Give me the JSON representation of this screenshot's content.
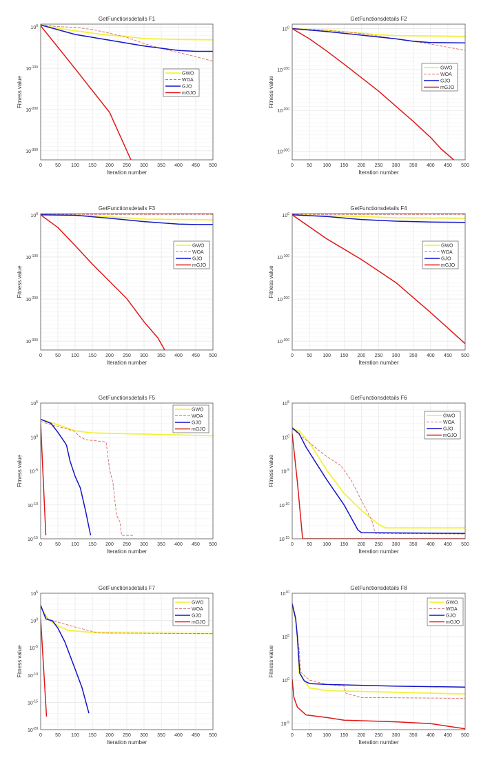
{
  "colors": {
    "GWO": "#f2f23a",
    "WOA": "#d46a6a",
    "GJO": "#1414c8",
    "mGJO": "#e01818",
    "grid": "#e3e3e3",
    "axis": "#555555"
  },
  "chart_data": [
    {
      "type": "line",
      "title": "GetFunctionsdetails F1",
      "xlabel": "Iteration number",
      "ylabel": "Fitness value",
      "yscale": "log",
      "xlim": [
        0,
        500
      ],
      "ylim": [
        1e-322,
        10000000.0
      ],
      "xticks": [
        0,
        50,
        100,
        150,
        200,
        250,
        300,
        350,
        400,
        450,
        500
      ],
      "ytick_exponents": [
        0,
        -100,
        -200,
        -300
      ],
      "grid": true,
      "legend_position": "east",
      "series": [
        {
          "name": "GWO",
          "x": [
            0,
            50,
            100,
            150,
            200,
            250,
            300,
            400,
            500
          ],
          "y": [
            100000.0,
            0.001,
            1e-09,
            1e-15,
            1e-20,
            1e-23,
            1e-28,
            1e-30,
            1e-31
          ]
        },
        {
          "name": "WOA",
          "x": [
            0,
            50,
            100,
            150,
            200,
            250,
            300,
            350,
            400,
            450,
            500
          ],
          "y": [
            100000.0,
            10.0,
            0.1,
            1e-06,
            1e-15,
            1e-25,
            1e-40,
            1e-52,
            1e-62,
            1e-72,
            1e-83
          ]
        },
        {
          "name": "GJO",
          "x": [
            0,
            100,
            200,
            300,
            400,
            450,
            500
          ],
          "y": [
            100000.0,
            1e-18,
            1e-32,
            1e-46,
            1e-57,
            1e-59,
            1e-59
          ]
        },
        {
          "name": "mGJO",
          "x": [
            0,
            100,
            200,
            262
          ],
          "y": [
            1000.0,
            1e-101,
            1e-207,
            1e-322
          ]
        }
      ]
    },
    {
      "type": "line",
      "title": "GetFunctionsdetails F2",
      "xlabel": "Iteration number",
      "ylabel": "Fitness value",
      "yscale": "log",
      "xlim": [
        0,
        500
      ],
      "ylim": [
        1e-321,
        100000000000.0
      ],
      "xticks": [
        0,
        50,
        100,
        150,
        200,
        250,
        300,
        350,
        400,
        450,
        500
      ],
      "ytick_exponents": [
        0,
        -100,
        -200,
        -300
      ],
      "grid": true,
      "legend_position": "east",
      "series": [
        {
          "name": "GWO",
          "x": [
            0,
            100,
            200,
            250,
            300,
            500
          ],
          "y": [
            1,
            0.0001,
            1e-11,
            1e-15,
            1e-17,
            1e-19
          ]
        },
        {
          "name": "WOA",
          "x": [
            0,
            100,
            200,
            300,
            400,
            500
          ],
          "y": [
            1,
            0.0001,
            1e-12,
            1e-25,
            1e-38,
            1e-53
          ]
        },
        {
          "name": "GJO",
          "x": [
            0,
            100,
            200,
            300,
            350,
            400,
            500
          ],
          "y": [
            1,
            1e-07,
            1e-16,
            1e-25,
            1e-31,
            1e-34,
            1e-35
          ]
        },
        {
          "name": "mGJO",
          "x": [
            0,
            50,
            100,
            150,
            200,
            250,
            300,
            350,
            400,
            430,
            467
          ],
          "y": [
            1,
            1e-25,
            1e-55,
            1e-87,
            1e-120,
            1e-153,
            1e-190,
            1e-227,
            1e-266,
            1e-294,
            1e-321
          ]
        }
      ]
    },
    {
      "type": "line",
      "title": "GetFunctionsdetails F3",
      "xlabel": "Iteration number",
      "ylabel": "Fitness value",
      "yscale": "log",
      "xlim": [
        0,
        500
      ],
      "ylim": [
        1e-321,
        1000.0
      ],
      "xticks": [
        0,
        50,
        100,
        150,
        200,
        250,
        300,
        350,
        400,
        450,
        500
      ],
      "ytick_exponents": [
        0,
        -100,
        -200,
        -300
      ],
      "grid": true,
      "legend_position": "east",
      "series": [
        {
          "name": "GWO",
          "x": [
            0,
            150,
            250,
            300,
            500
          ],
          "y": [
            1,
            0.01,
            1e-07,
            1e-10,
            1e-12
          ]
        },
        {
          "name": "WOA",
          "x": [
            0,
            500
          ],
          "y": [
            10,
            10
          ]
        },
        {
          "name": "GJO",
          "x": [
            0,
            100,
            200,
            300,
            400,
            450,
            500
          ],
          "y": [
            1,
            0.1,
            1e-08,
            1e-16,
            1e-22,
            1e-23,
            1e-23
          ]
        },
        {
          "name": "mGJO",
          "x": [
            0,
            50,
            100,
            150,
            200,
            250,
            300,
            340,
            360
          ],
          "y": [
            1,
            1e-30,
            1e-73,
            1e-117,
            1e-158,
            1e-199,
            1e-254,
            1e-292,
            1e-321
          ]
        }
      ]
    },
    {
      "type": "line",
      "title": "GetFunctionsdetails F4",
      "xlabel": "Iteration number",
      "ylabel": "Fitness value",
      "yscale": "log",
      "xlim": [
        0,
        500
      ],
      "ylim": [
        1e-321,
        1000.0
      ],
      "xticks": [
        0,
        50,
        100,
        150,
        200,
        250,
        300,
        350,
        400,
        450,
        500
      ],
      "ytick_exponents": [
        0,
        -100,
        -200,
        -300
      ],
      "grid": true,
      "legend_position": "east",
      "series": [
        {
          "name": "GWO",
          "x": [
            0,
            200,
            300,
            500
          ],
          "y": [
            1,
            0.0001,
            1e-07,
            1e-08
          ]
        },
        {
          "name": "WOA",
          "x": [
            0,
            500
          ],
          "y": [
            10,
            10
          ]
        },
        {
          "name": "GJO",
          "x": [
            0,
            100,
            200,
            300,
            400,
            500
          ],
          "y": [
            1,
            0.0001,
            1e-11,
            1e-15,
            1e-17,
            1e-18
          ]
        },
        {
          "name": "mGJO",
          "x": [
            0,
            100,
            200,
            300,
            400,
            500
          ],
          "y": [
            1,
            1e-57,
            1e-106,
            1e-161,
            1e-232,
            1e-306
          ]
        }
      ]
    },
    {
      "type": "line",
      "title": "GetFunctionsdetails F5",
      "xlabel": "Iteration number",
      "ylabel": "Fitness value",
      "yscale": "log",
      "xlim": [
        0,
        500
      ],
      "ylim": [
        1e-15,
        100000.0
      ],
      "xticks": [
        0,
        50,
        100,
        150,
        200,
        250,
        300,
        350,
        400,
        450,
        500
      ],
      "ytick_exponents": [
        5,
        0,
        -5,
        -10,
        -15
      ],
      "grid": true,
      "legend_position": "northeast",
      "series": [
        {
          "name": "GWO",
          "x": [
            0,
            50,
            100,
            150,
            300,
            500
          ],
          "y": [
            398,
            63,
            7.9,
            4,
            2.7,
            1.5
          ]
        },
        {
          "name": "WOA",
          "x": [
            0,
            30,
            75,
            100,
            110,
            130,
            185,
            190,
            200,
            210,
            220,
            230,
            235,
            270
          ],
          "y": [
            200,
            63,
            16,
            6.3,
            1.5,
            0.4,
            0.2,
            0.16,
            1.6e-05,
            1.6e-07,
            3.2e-12,
            3.2e-13,
            3.2e-15,
            3.2e-15
          ]
        },
        {
          "name": "GJO",
          "x": [
            0,
            30,
            50,
            70,
            75,
            85,
            100,
            115,
            130,
            145
          ],
          "y": [
            398,
            100,
            5,
            0.16,
            0.063,
            0.00032,
            1.6e-06,
            3.2e-08,
            1.6e-11,
            3.2e-15
          ]
        },
        {
          "name": "mGJO",
          "x": [
            0,
            15
          ],
          "y": [
            100,
            3.2e-15
          ]
        }
      ]
    },
    {
      "type": "line",
      "title": "GetFunctionsdetails F6",
      "xlabel": "Iteration number",
      "ylabel": "Fitness value",
      "yscale": "log",
      "xlim": [
        0,
        500
      ],
      "ylim": [
        1e-15,
        100000.0
      ],
      "xticks": [
        0,
        50,
        100,
        150,
        200,
        250,
        300,
        350,
        400,
        450,
        500
      ],
      "ytick_exponents": [
        5,
        0,
        -5,
        -10,
        -15
      ],
      "grid": true,
      "legend_position": "northeast",
      "series": [
        {
          "name": "GWO",
          "x": [
            0,
            20,
            50,
            100,
            150,
            200,
            250,
            270,
            500
          ],
          "y": [
            17.8,
            7.9,
            0.14,
            1.3e-05,
            5e-09,
            1.6e-11,
            1.3e-13,
            4e-14,
            4e-14
          ]
        },
        {
          "name": "WOA",
          "x": [
            0,
            50,
            100,
            140,
            170,
            200,
            230,
            240,
            500
          ],
          "y": [
            16,
            0.14,
            0.0013,
            6.3e-05,
            5e-07,
            5e-10,
            5e-13,
            6.3e-15,
            5e-15
          ]
        },
        {
          "name": "GJO",
          "x": [
            0,
            20,
            40,
            100,
            150,
            190,
            200,
            500
          ],
          "y": [
            22,
            3.2,
            0.032,
            5e-07,
            1e-10,
            2e-14,
            8e-15,
            6.3e-15
          ]
        },
        {
          "name": "mGJO",
          "x": [
            0,
            15,
            30,
            500
          ],
          "y": [
            3.2,
            2.5e-07,
            1e-15,
            1e-15
          ]
        }
      ]
    },
    {
      "type": "line",
      "title": "GetFunctionsdetails F7",
      "xlabel": "Iteration number",
      "ylabel": "Fitness value",
      "yscale": "log",
      "xlim": [
        0,
        500
      ],
      "ylim": [
        1e-20,
        100000.0
      ],
      "xticks": [
        0,
        50,
        100,
        150,
        200,
        250,
        300,
        350,
        400,
        450,
        500
      ],
      "ytick_exponents": [
        5,
        0,
        -5,
        -10,
        -15,
        -20
      ],
      "grid": true,
      "legend_position": "northeast",
      "series": [
        {
          "name": "GWO",
          "x": [
            0,
            20,
            50,
            80,
            150,
            500
          ],
          "y": [
            398,
            2,
            0.1,
            0.016,
            0.0063,
            0.004
          ]
        },
        {
          "name": "WOA",
          "x": [
            0,
            20,
            50,
            100,
            150,
            170,
            500
          ],
          "y": [
            316,
            2,
            0.5,
            0.063,
            0.01,
            0.005,
            0.004
          ]
        },
        {
          "name": "GJO",
          "x": [
            0,
            15,
            35,
            50,
            70,
            100,
            120,
            140
          ],
          "y": [
            631,
            2,
            0.8,
            0.04,
            0.00013,
            1.3e-09,
            5e-13,
            1e-17
          ]
        },
        {
          "name": "mGJO",
          "x": [
            0,
            17
          ],
          "y": [
            2,
            2.5e-18
          ]
        }
      ]
    },
    {
      "type": "line",
      "title": "GetFunctionsdetails F8",
      "xlabel": "Iteration number",
      "ylabel": "Fitness value",
      "yscale": "log",
      "xlim": [
        0,
        500
      ],
      "ylim": [
        2e-06,
        10000000000.0
      ],
      "xticks": [
        0,
        50,
        100,
        150,
        200,
        250,
        300,
        350,
        400,
        450,
        500
      ],
      "ytick_exponents": [
        10,
        5,
        0,
        -5
      ],
      "grid": true,
      "legend_position": "northeast",
      "series": [
        {
          "name": "GWO",
          "x": [
            0,
            10,
            15,
            20,
            35,
            50,
            100,
            200,
            500
          ],
          "y": [
            320000000.0,
            10000000.0,
            100000.0,
            6.3,
            0.8,
            0.13,
            0.063,
            0.05,
            0.025
          ]
        },
        {
          "name": "WOA",
          "x": [
            0,
            10,
            15,
            20,
            25,
            50,
            100,
            150,
            155,
            200,
            500
          ],
          "y": [
            320000000.0,
            10000000.0,
            100000.0,
            4000.0,
            7.9,
            1,
            0.32,
            0.2,
            0.032,
            0.01,
            0.0079
          ]
        },
        {
          "name": "GJO",
          "x": [
            0,
            10,
            15,
            22,
            35,
            50,
            100,
            300,
            500
          ],
          "y": [
            630000000.0,
            13000000.0,
            100000.0,
            6.3,
            0.8,
            0.4,
            0.32,
            0.2,
            0.16
          ]
        },
        {
          "name": "mGJO",
          "x": [
            0,
            5,
            15,
            40,
            100,
            150,
            300,
            400,
            450,
            500
          ],
          "y": [
            1.26,
            0.01,
            0.00079,
            0.0001,
            5e-05,
            2.5e-05,
            1.6e-05,
            1e-05,
            5e-06,
            2.5e-06
          ]
        }
      ]
    }
  ]
}
